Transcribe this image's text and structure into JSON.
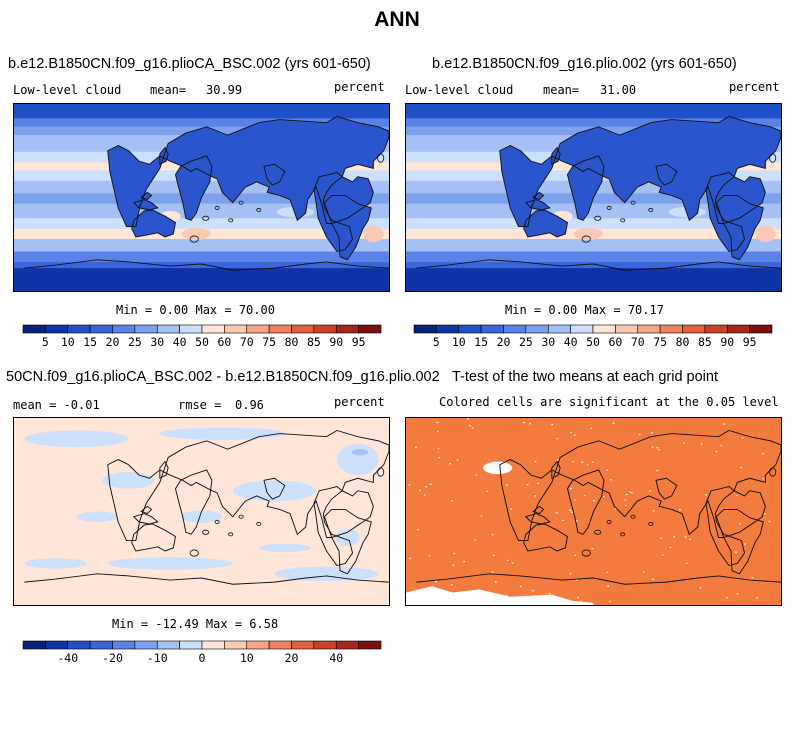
{
  "main_title": "ANN",
  "colors": {
    "scale": [
      "#08217a",
      "#0f34a6",
      "#2050c8",
      "#3a66da",
      "#5b82e6",
      "#7ea1ee",
      "#a4c0f4",
      "#cde0fb",
      "#ffe6d8",
      "#fbcab4",
      "#f6a688",
      "#f08260",
      "#e2603d",
      "#c94228",
      "#a5271a",
      "#7a1010"
    ],
    "land_cloud": "#2a55cc",
    "stipple": "#f37b3e"
  },
  "panels": [
    {
      "title": "b.e12.B1850CN.f09_g16.plioCA_BSC.002 (yrs 601-650)",
      "left_label": "Low-level cloud",
      "mean_label": "mean=",
      "mean_value": "30.99",
      "right_label": "percent",
      "stats": "Min =   0.00 Max =  70.00",
      "colorbar_labels": [
        "5",
        "10",
        "15",
        "20",
        "25",
        "30",
        "40",
        "50",
        "60",
        "70",
        "75",
        "80",
        "85",
        "90",
        "95"
      ]
    },
    {
      "title": "b.e12.B1850CN.f09_g16.plio.002 (yrs 601-650)",
      "left_label": "Low-level cloud",
      "mean_label": "mean=",
      "mean_value": "31.00",
      "right_label": "percent",
      "stats": "Min =   0.00 Max =  70.17",
      "colorbar_labels": [
        "5",
        "10",
        "15",
        "20",
        "25",
        "30",
        "40",
        "50",
        "60",
        "70",
        "75",
        "80",
        "85",
        "90",
        "95"
      ]
    },
    {
      "title": "50CN.f09_g16.plioCA_BSC.002 - b.e12.B1850CN.f09_g16.plio.002",
      "left_label": "mean =  -0.01",
      "mean_label": "rmse =",
      "mean_value": "0.96",
      "right_label": "percent",
      "stats": "Min = -12.49 Max =   6.58",
      "colorbar_labels": [
        "-40",
        "-20",
        "-10",
        "0",
        "10",
        "20",
        "40"
      ]
    },
    {
      "title": "T-test of the two means at each grid point",
      "subtitle": "Colored cells are significant at the 0.05 level"
    }
  ],
  "chart_data": [
    {
      "type": "heatmap",
      "title": "b.e12.B1850CN.f09_g16.plioCA_BSC.002 (yrs 601-650)",
      "variable": "Low-level cloud",
      "units": "percent",
      "mean": 30.99,
      "min": 0.0,
      "max": 70.0,
      "levels": [
        5,
        10,
        15,
        20,
        25,
        30,
        40,
        50,
        60,
        70,
        75,
        80,
        85,
        90,
        95
      ]
    },
    {
      "type": "heatmap",
      "title": "b.e12.B1850CN.f09_g16.plio.002 (yrs 601-650)",
      "variable": "Low-level cloud",
      "units": "percent",
      "mean": 31.0,
      "min": 0.0,
      "max": 70.17,
      "levels": [
        5,
        10,
        15,
        20,
        25,
        30,
        40,
        50,
        60,
        70,
        75,
        80,
        85,
        90,
        95
      ]
    },
    {
      "type": "heatmap",
      "title": "50CN.f09_g16.plioCA_BSC.002 - b.e12.B1850CN.f09_g16.plio.002",
      "units": "percent",
      "mean": -0.01,
      "rmse": 0.96,
      "min": -12.49,
      "max": 6.58,
      "levels": [
        -40,
        -20,
        -10,
        0,
        10,
        20,
        40
      ]
    },
    {
      "type": "heatmap",
      "title": "T-test of the two means at each grid point",
      "subtitle": "Colored cells are significant at the 0.05 level",
      "significance_level": 0.05
    }
  ]
}
